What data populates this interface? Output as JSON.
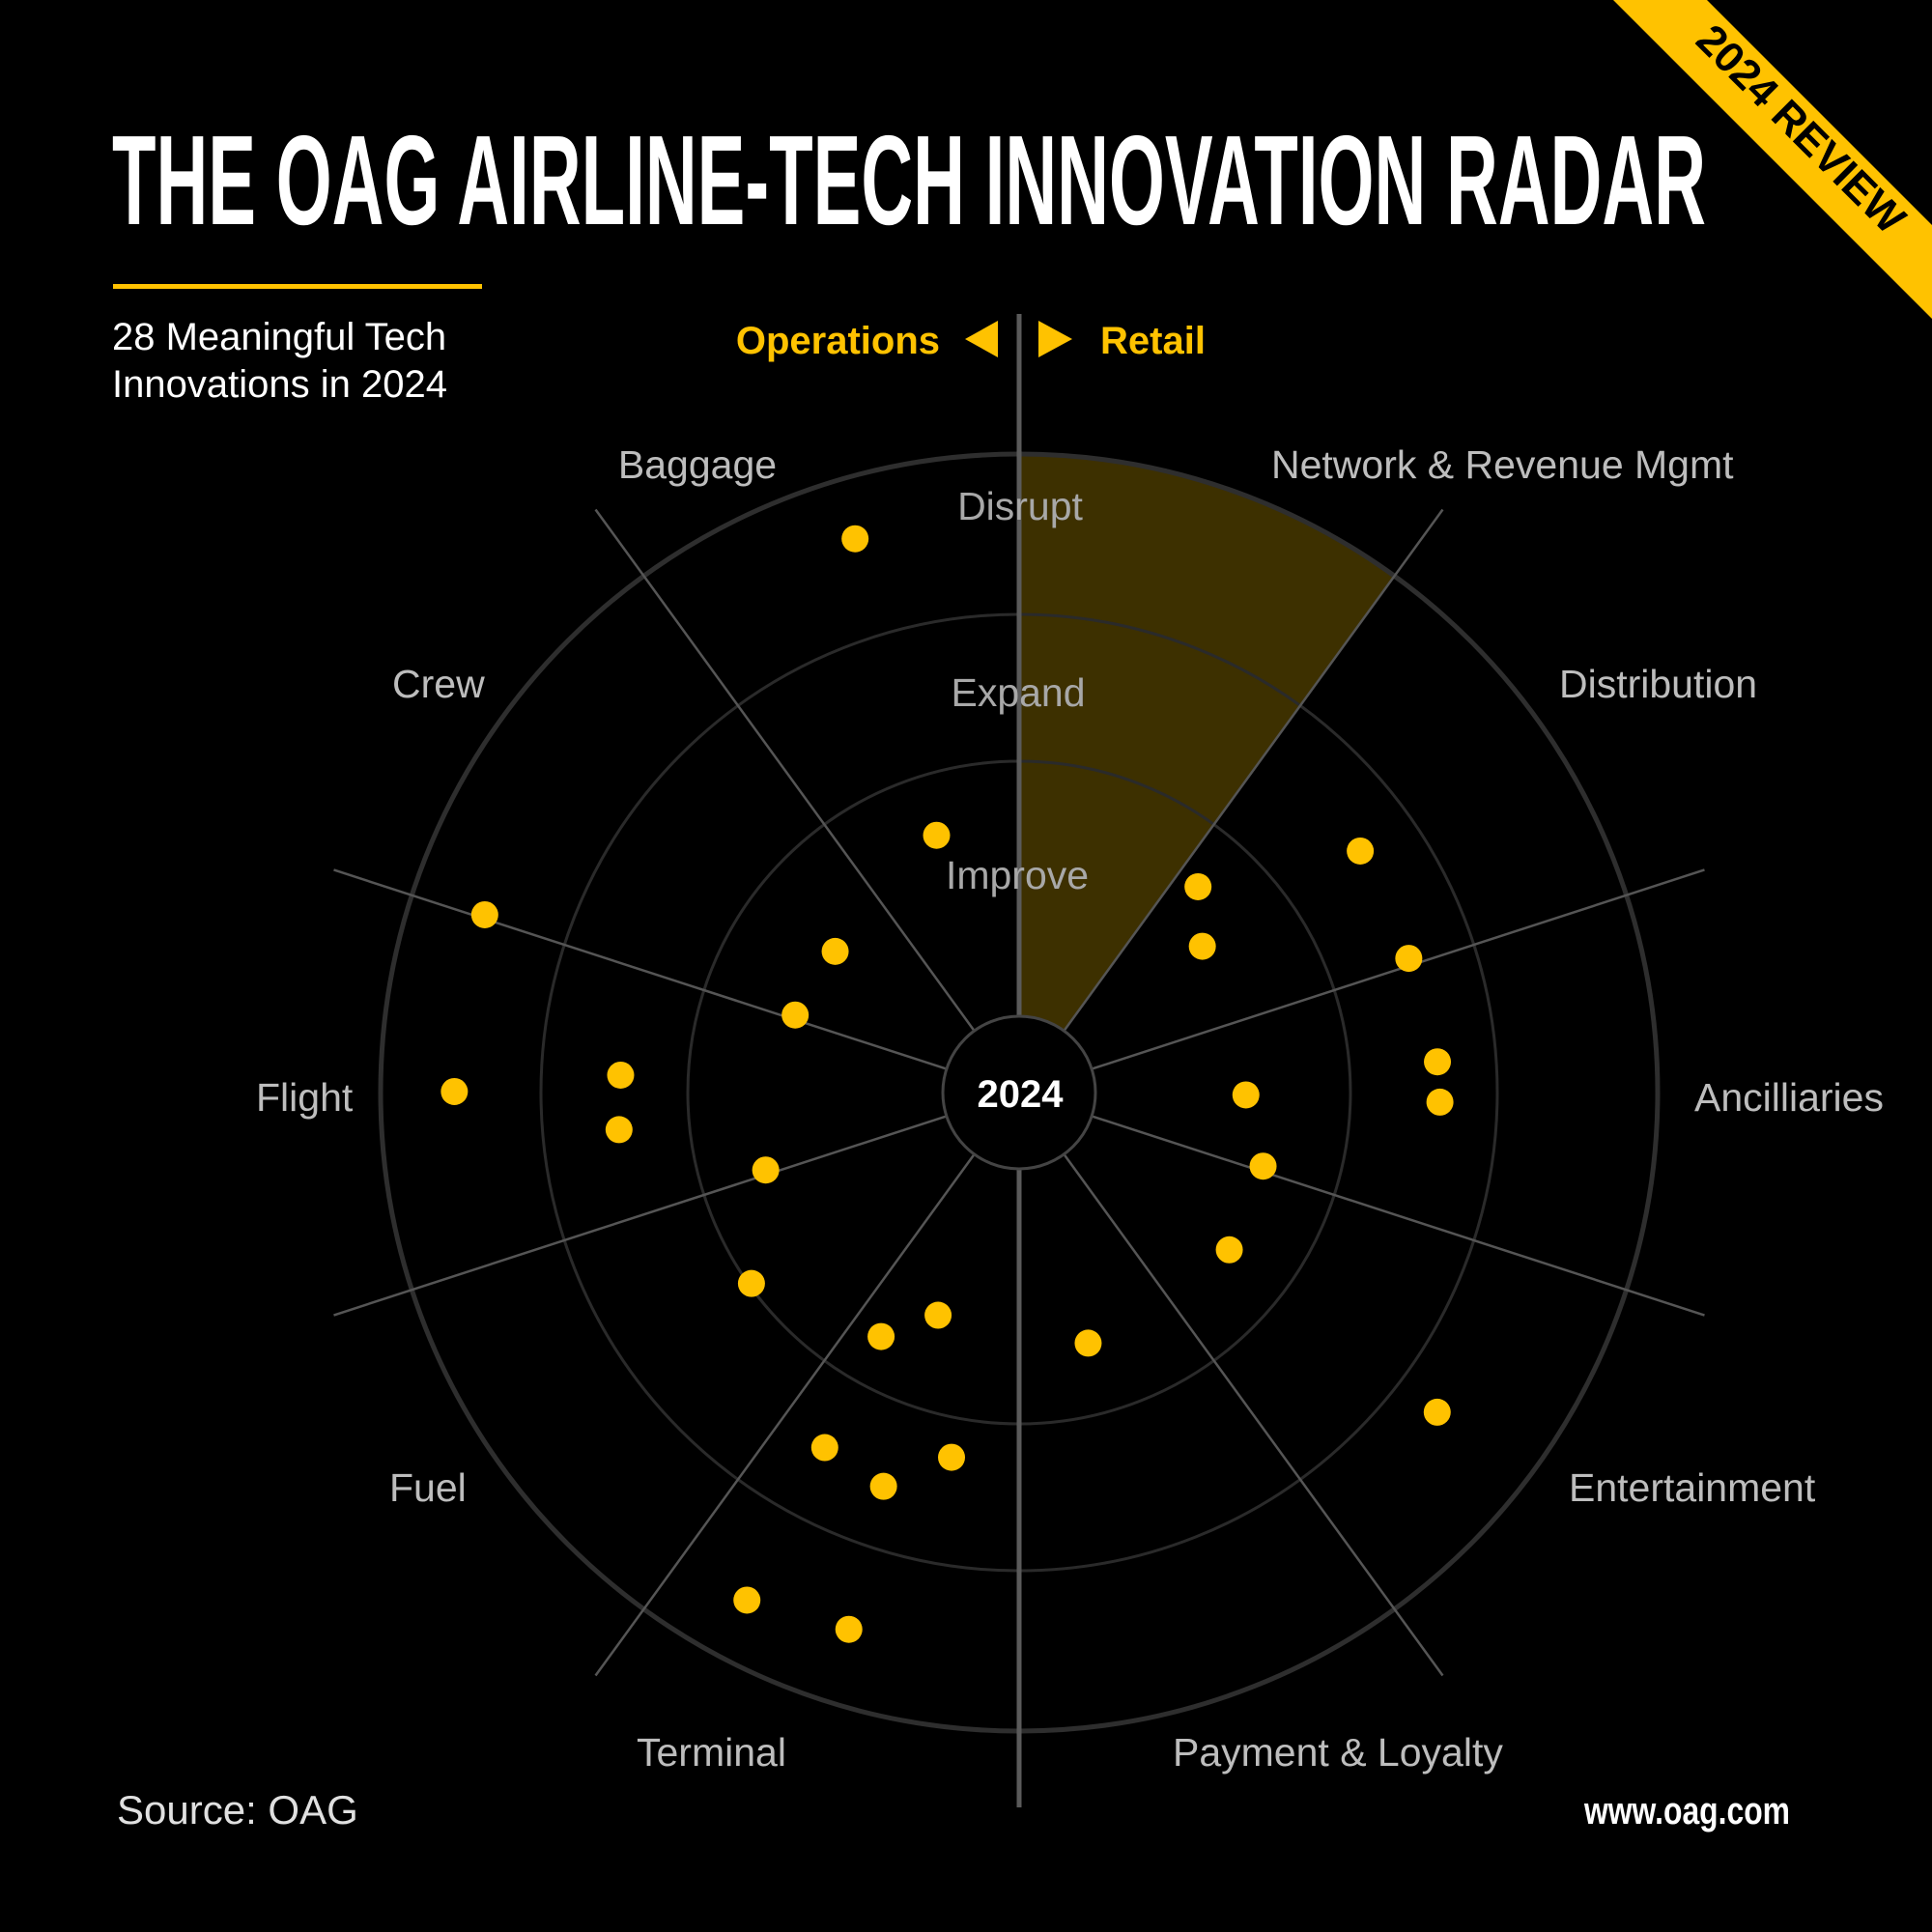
{
  "header": {
    "title": "THE OAG AIRLINE-TECH INNOVATION RADAR",
    "subtitle_line1": "28 Meaningful Tech",
    "subtitle_line2": "Innovations in 2024",
    "banner": "2024 REVIEW"
  },
  "footer": {
    "source": "Source: OAG",
    "website": "www.oag.com"
  },
  "colors": {
    "background": "#000000",
    "accent": "#ffc200",
    "highlight_sector": "#3d3000",
    "ring": "#2c2c2c",
    "spoke": "#555555",
    "label": "#bdbdbd"
  },
  "chart_data": {
    "type": "scatter",
    "subtype": "polar-radar",
    "center_label": "2024",
    "halves": {
      "left": "Operations",
      "right": "Retail"
    },
    "rings": [
      "Improve",
      "Expand",
      "Disrupt"
    ],
    "categories": [
      {
        "name": "Network & Revenue Mgmt",
        "from": 0,
        "to": 36,
        "highlighted": true
      },
      {
        "name": "Distribution",
        "from": 36,
        "to": 72
      },
      {
        "name": "Ancilliaries",
        "from": 72,
        "to": 108
      },
      {
        "name": "Entertainment",
        "from": 108,
        "to": 144
      },
      {
        "name": "Payment & Loyalty",
        "from": 144,
        "to": 180
      },
      {
        "name": "Terminal",
        "from": 180,
        "to": 216
      },
      {
        "name": "Fuel",
        "from": 216,
        "to": 252
      },
      {
        "name": "Flight",
        "from": 252,
        "to": 288
      },
      {
        "name": "Crew",
        "from": 288,
        "to": 324
      },
      {
        "name": "Baggage",
        "from": 324,
        "to": 360
      }
    ],
    "radial_range": [
      0,
      3
    ],
    "angle_unit": "degrees clockwise from top",
    "points": [
      {
        "category": "Baggage",
        "theta": 343.5,
        "r": 2.62
      },
      {
        "category": "Baggage",
        "theta": 342.2,
        "r": 0.76
      },
      {
        "category": "Crew",
        "theta": 307.5,
        "r": 0.61
      },
      {
        "category": "Crew",
        "theta": 289.1,
        "r": 0.63
      },
      {
        "category": "Crew",
        "theta": 288.4,
        "r": 2.53
      },
      {
        "category": "Flight",
        "theta": 270.1,
        "r": 2.54
      },
      {
        "category": "Flight",
        "theta": 272.5,
        "r": 1.46
      },
      {
        "category": "Flight",
        "theta": 264.7,
        "r": 1.48
      },
      {
        "category": "Fuel",
        "theta": 253.0,
        "r": 0.74
      },
      {
        "category": "Fuel",
        "theta": 234.5,
        "r": 0.99
      },
      {
        "category": "Terminal",
        "theta": 200.0,
        "r": 0.63
      },
      {
        "category": "Terminal",
        "theta": 209.5,
        "r": 0.8
      },
      {
        "category": "Terminal",
        "theta": 208.7,
        "r": 1.5
      },
      {
        "category": "Terminal",
        "theta": 199.0,
        "r": 1.58
      },
      {
        "category": "Terminal",
        "theta": 190.5,
        "r": 1.27
      },
      {
        "category": "Terminal",
        "theta": 208.2,
        "r": 2.61
      },
      {
        "category": "Terminal",
        "theta": 197.6,
        "r": 2.53
      },
      {
        "category": "Payment & Loyalty",
        "theta": 164.6,
        "r": 0.72
      },
      {
        "category": "Entertainment",
        "theta": 126.8,
        "r": 0.73
      },
      {
        "category": "Ancilliaries",
        "theta": 106.8,
        "r": 0.7
      },
      {
        "category": "Ancilliaries",
        "theta": 90.6,
        "r": 0.59
      },
      {
        "category": "Ancilliaries",
        "theta": 85.8,
        "r": 1.6
      },
      {
        "category": "Ancilliaries",
        "theta": 91.3,
        "r": 1.61
      },
      {
        "category": "Entertainment",
        "theta": 127.4,
        "r": 2.3
      },
      {
        "category": "Distribution",
        "theta": 71.0,
        "r": 1.55
      },
      {
        "category": "Distribution",
        "theta": 54.7,
        "r": 1.59
      },
      {
        "category": "Distribution",
        "theta": 41.0,
        "r": 0.77
      },
      {
        "category": "Distribution",
        "theta": 51.4,
        "r": 0.62
      }
    ]
  }
}
